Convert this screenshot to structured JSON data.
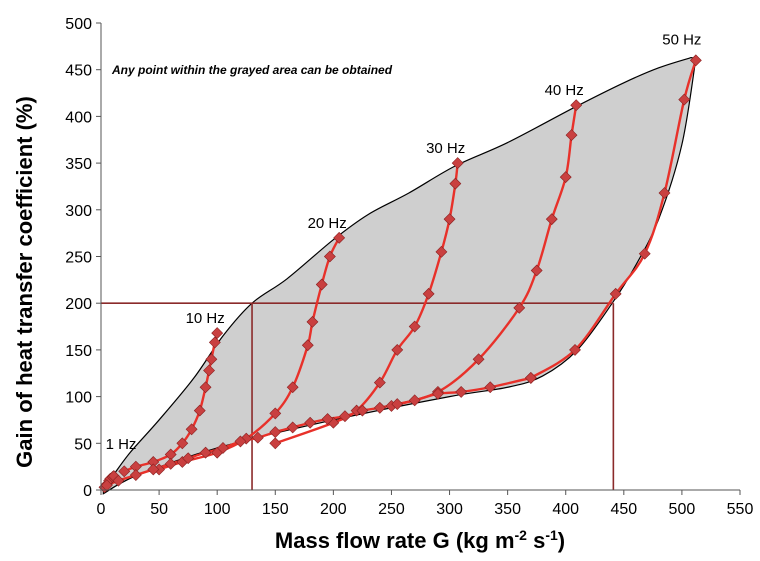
{
  "chart_data": {
    "type": "line",
    "title": "",
    "xlabel": "Mass flow rate G (kg m",
    "xlabel_sup1": "-2",
    "xlabel_mid": " s",
    "xlabel_sup2": "-1",
    "xlabel_end": ")",
    "ylabel": "Gain of heat transfer coefficient (%)",
    "annotation": "Any point within the grayed area can be obtained",
    "xlim": [
      0,
      550
    ],
    "ylim": [
      0,
      500
    ],
    "xticks": [
      "0",
      "50",
      "100",
      "150",
      "200",
      "250",
      "300",
      "350",
      "400",
      "450",
      "500",
      "550"
    ],
    "yticks": [
      "0",
      "50",
      "100",
      "150",
      "200",
      "250",
      "300",
      "350",
      "400",
      "450",
      "500"
    ],
    "colors": {
      "region_fill": "#cfcfcf",
      "series_line": "#e8312a",
      "marker": "#c94040",
      "marker_edge": "#8a2020",
      "guide_lines": "#8b2a2a"
    },
    "envelope_upper": [
      [
        2,
        2
      ],
      [
        5,
        8
      ],
      [
        10,
        15
      ],
      [
        25,
        40
      ],
      [
        50,
        75
      ],
      [
        80,
        120
      ],
      [
        105,
        165
      ],
      [
        130,
        200
      ],
      [
        160,
        226
      ],
      [
        200,
        268
      ],
      [
        230,
        295
      ],
      [
        265,
        318
      ],
      [
        305,
        347
      ],
      [
        350,
        372
      ],
      [
        408,
        410
      ],
      [
        450,
        436
      ],
      [
        480,
        452
      ],
      [
        508,
        463
      ]
    ],
    "envelope_lower": [
      [
        2,
        -4
      ],
      [
        30,
        15
      ],
      [
        100,
        45
      ],
      [
        200,
        75
      ],
      [
        300,
        100
      ],
      [
        350,
        110
      ],
      [
        380,
        122
      ],
      [
        410,
        150
      ],
      [
        440,
        200
      ],
      [
        460,
        240
      ],
      [
        480,
        290
      ],
      [
        500,
        370
      ],
      [
        512,
        462
      ]
    ],
    "series": [
      {
        "name": "1 Hz",
        "points": [
          [
            3,
            3
          ],
          [
            5,
            6
          ],
          [
            7,
            10
          ],
          [
            8,
            12
          ],
          [
            10,
            14
          ],
          [
            11,
            15
          ]
        ]
      },
      {
        "name": "10 Hz",
        "points": [
          [
            20,
            20
          ],
          [
            30,
            25
          ],
          [
            45,
            30
          ],
          [
            60,
            38
          ],
          [
            70,
            50
          ],
          [
            78,
            65
          ],
          [
            85,
            85
          ],
          [
            90,
            110
          ],
          [
            93,
            128
          ],
          [
            95,
            140
          ],
          [
            98,
            158
          ],
          [
            100,
            168
          ]
        ]
      },
      {
        "name": "20 Hz",
        "points": [
          [
            50,
            22
          ],
          [
            70,
            30
          ],
          [
            100,
            40
          ],
          [
            125,
            55
          ],
          [
            150,
            82
          ],
          [
            165,
            110
          ],
          [
            178,
            155
          ],
          [
            182,
            180
          ],
          [
            190,
            220
          ],
          [
            197,
            250
          ],
          [
            205,
            270
          ]
        ]
      },
      {
        "name": "30 Hz",
        "points": [
          [
            150,
            50
          ],
          [
            200,
            72
          ],
          [
            220,
            85
          ],
          [
            240,
            115
          ],
          [
            255,
            150
          ],
          [
            270,
            175
          ],
          [
            282,
            210
          ],
          [
            293,
            255
          ],
          [
            300,
            290
          ],
          [
            305,
            328
          ],
          [
            307,
            350
          ]
        ]
      },
      {
        "name": "40 Hz",
        "points": [
          [
            250,
            90
          ],
          [
            290,
            105
          ],
          [
            325,
            140
          ],
          [
            360,
            195
          ],
          [
            375,
            235
          ],
          [
            388,
            290
          ],
          [
            400,
            335
          ],
          [
            405,
            380
          ],
          [
            409,
            412
          ]
        ]
      },
      {
        "name": "50 Hz",
        "points": [
          [
            370,
            120
          ],
          [
            408,
            150
          ],
          [
            443,
            210
          ],
          [
            468,
            253
          ],
          [
            485,
            318
          ],
          [
            502,
            418
          ],
          [
            512,
            460
          ]
        ]
      },
      {
        "name": "",
        "points": [
          [
            5,
            5
          ],
          [
            15,
            10
          ],
          [
            30,
            16
          ],
          [
            45,
            22
          ],
          [
            60,
            28
          ],
          [
            75,
            34
          ],
          [
            90,
            40
          ],
          [
            105,
            45
          ],
          [
            120,
            52
          ],
          [
            135,
            56
          ],
          [
            150,
            62
          ],
          [
            165,
            67
          ],
          [
            180,
            72
          ],
          [
            195,
            76
          ],
          [
            210,
            79
          ],
          [
            225,
            85
          ],
          [
            240,
            88
          ],
          [
            255,
            92
          ],
          [
            270,
            96
          ],
          [
            290,
            103
          ],
          [
            310,
            105
          ],
          [
            335,
            110
          ],
          [
            370,
            120
          ]
        ]
      }
    ],
    "series_labels": [
      "1 Hz",
      "10 Hz",
      "20 Hz",
      "30 Hz",
      "40 Hz",
      "50 Hz"
    ],
    "reference_lines": {
      "y": 200,
      "x_left": 130,
      "x_right": 441
    }
  }
}
